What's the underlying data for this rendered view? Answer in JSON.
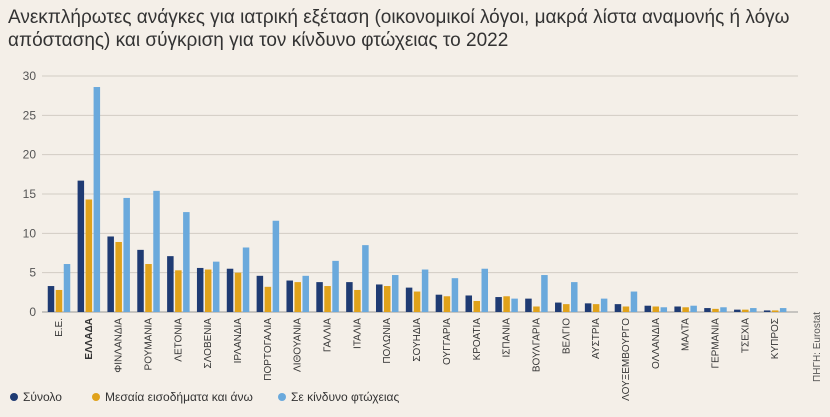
{
  "chart_data": {
    "type": "bar",
    "title": "Ανεκπλήρωτες ανάγκες για ιατρική εξέταση (οικονομικοί λόγοι, μακρά λίστα αναμονής ή λόγω απόστασης) και σύγκριση για τον κίνδυνο φτώχειας το 2022",
    "categories": [
      "Ε.Ε.",
      "ΕΛΛΑΔΑ",
      "ΦΙΝΛΑΝΔΙΑ",
      "ΡΟΥΜΑΝΙΑ",
      "ΛΕΤΟΝΙΑ",
      "ΣΛΟΒΕΝΙΑ",
      "ΙΡΛΑΝΔΙΑ",
      "ΠΟΡΤΟΓΑΛΙΑ",
      "ΛΙΘΟΥΑΝΙΑ",
      "ΓΑΛΛΙΑ",
      "ΙΤΑΛΙΑ",
      "ΠΟΛΩΝΙΑ",
      "ΣΟΥΗΔΙΑ",
      "ΟΥΓΓΑΡΙΑ",
      "ΚΡΟΑΤΙΑ",
      "ΙΣΠΑΝΙΑ",
      "ΒΟΥΛΓΑΡΙΑ",
      "ΒΕΛΓΙΟ",
      "ΑΥΣΤΡΙΑ",
      "ΛΟΥΞΕΜΒΟΥΡΓΟ",
      "ΟΛΛΑΝΔΙΑ",
      "ΜΑΛΤΑ",
      "ΓΕΡΜΑΝΙΑ",
      "ΤΣΕΧΙΑ",
      "ΚΥΠΡΟΣ"
    ],
    "highlight_category": "ΕΛΛΑΔΑ",
    "series": [
      {
        "name": "Σύνολο",
        "color": "#1f3b73",
        "values": [
          3.3,
          16.7,
          9.6,
          7.9,
          7.1,
          5.6,
          5.5,
          4.6,
          4.0,
          3.8,
          3.8,
          3.5,
          3.1,
          2.2,
          2.1,
          1.9,
          1.7,
          1.2,
          1.1,
          1.0,
          0.8,
          0.7,
          0.5,
          0.3,
          0.2
        ]
      },
      {
        "name": "Μεσαία εισοδήματα και άνω",
        "color": "#e0a21b",
        "values": [
          2.8,
          14.3,
          8.9,
          6.1,
          5.3,
          5.4,
          5.0,
          3.2,
          3.8,
          3.3,
          2.8,
          3.3,
          2.6,
          2.0,
          1.4,
          2.0,
          0.7,
          1.0,
          1.0,
          0.7,
          0.7,
          0.6,
          0.4,
          0.3,
          0.2
        ]
      },
      {
        "name": "Σε κίνδυνο φτώχειας",
        "color": "#6aa9dc",
        "values": [
          6.1,
          28.6,
          14.5,
          15.4,
          12.7,
          6.4,
          8.2,
          11.6,
          4.6,
          6.5,
          8.5,
          4.7,
          5.4,
          4.3,
          5.5,
          1.7,
          4.7,
          3.8,
          1.7,
          2.6,
          0.6,
          0.8,
          0.6,
          0.5,
          0.5
        ]
      }
    ],
    "ylim": [
      0,
      30
    ],
    "yticks": [
      0,
      5,
      10,
      15,
      20,
      25,
      30
    ],
    "grid": true,
    "legend": "bottom-left",
    "source": "ΠΗΓΗ: Eurostat"
  }
}
